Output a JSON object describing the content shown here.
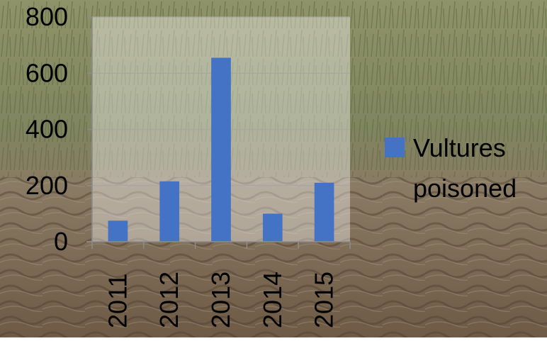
{
  "chart_data": {
    "type": "bar",
    "categories": [
      "2011",
      "2012",
      "2013",
      "2014",
      "2015"
    ],
    "series": [
      {
        "name": "Vultures poisoned",
        "legend_lines": [
          "Vultures",
          "poisoned"
        ],
        "values": [
          75,
          215,
          655,
          100,
          210
        ],
        "color": "#4472C4"
      }
    ],
    "ylim": [
      0,
      800
    ],
    "yticks": [
      "0",
      "200",
      "400",
      "600",
      "800"
    ],
    "grid": true,
    "legend_position": "right",
    "colors": {
      "bar": "#4472C4",
      "plot_background": "#ffffff",
      "gridline": "#a6a6a6",
      "axis": "#8c8c8c",
      "text": "#000000"
    }
  }
}
